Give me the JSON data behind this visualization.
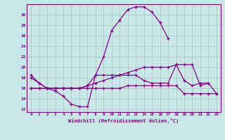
{
  "x_hours": [
    0,
    1,
    2,
    3,
    4,
    5,
    6,
    7,
    8,
    9,
    10,
    11,
    12,
    13,
    14,
    15,
    16,
    17,
    18,
    19,
    20,
    21,
    22,
    23
  ],
  "line1": [
    18.5,
    17.0,
    16.0,
    15.5,
    14.5,
    13.0,
    12.5,
    12.5,
    18.5,
    22.0,
    27.0,
    29.0,
    31.0,
    31.5,
    31.5,
    30.5,
    28.5,
    25.5,
    null,
    null,
    null,
    null,
    null,
    null
  ],
  "line2": [
    18.0,
    17.0,
    16.0,
    16.0,
    16.0,
    16.0,
    16.0,
    16.5,
    18.5,
    18.5,
    18.5,
    18.5,
    18.5,
    18.5,
    17.5,
    17.0,
    17.0,
    17.0,
    20.5,
    17.5,
    16.5,
    17.0,
    17.0,
    null
  ],
  "line3": [
    16.0,
    16.0,
    16.0,
    16.0,
    16.0,
    16.0,
    16.0,
    16.0,
    16.0,
    16.0,
    16.0,
    16.0,
    16.5,
    16.5,
    16.5,
    16.5,
    16.5,
    16.5,
    16.5,
    15.0,
    15.0,
    15.0,
    15.0,
    15.0
  ],
  "line4": [
    16.0,
    16.0,
    16.0,
    16.0,
    16.0,
    16.0,
    16.0,
    16.5,
    17.0,
    17.5,
    18.0,
    18.5,
    19.0,
    19.5,
    20.0,
    20.0,
    20.0,
    20.0,
    20.5,
    20.5,
    20.5,
    16.5,
    17.0,
    15.0
  ],
  "line_color": "#880088",
  "bg_color": "#c8e8e8",
  "grid_color": "#b0c8c8",
  "xlabel": "Windchill (Refroidissement éolien,°C)",
  "ylim": [
    11.5,
    32
  ],
  "xlim": [
    -0.5,
    23.5
  ],
  "yticks": [
    12,
    14,
    16,
    18,
    20,
    22,
    24,
    26,
    28,
    30
  ],
  "xticks": [
    0,
    1,
    2,
    3,
    4,
    5,
    6,
    7,
    8,
    9,
    10,
    11,
    12,
    13,
    14,
    15,
    16,
    17,
    18,
    19,
    20,
    21,
    22,
    23
  ]
}
